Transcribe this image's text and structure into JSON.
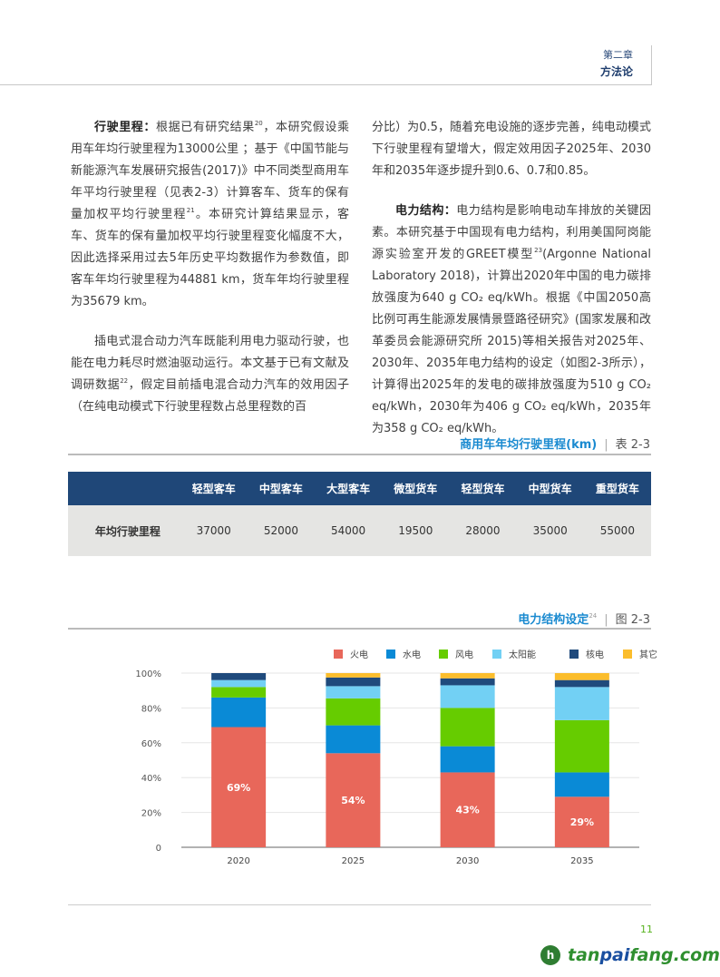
{
  "header": {
    "chapter": "第二章",
    "section": "方法论"
  },
  "left": {
    "p1_head": "行驶里程：",
    "p1_a": "根据已有研究结果",
    "p1_sup1": "20",
    "p1_b": "，本研究假设乘用车年均行驶里程为13000公里 ；基于《中国节能与新能源汽车发展研究报告(2017)》中不同类型商用车年平均行驶里程（见表2-3）计算客车、货车的保有量加权平均行驶里程",
    "p1_sup2": "21",
    "p1_c": "。本研究计算结果显示，客车、货车的保有量加权平均行驶里程变化幅度不大，因此选择采用过去5年历史平均数据作为参数值，即客车年均行驶里程为44881 km，货车年均行驶里程为35679 km。",
    "p2_a": "插电式混合动力汽车既能利用电力驱动行驶，也能在电力耗尽时燃油驱动运行。本文基于已有文献及调研数据",
    "p2_sup": "22",
    "p2_b": "，假定目前插电混合动力汽车的效用因子（在纯电动模式下行驶里程数占总里程数的百"
  },
  "right": {
    "p1": "分比）为0.5，随着充电设施的逐步完善，纯电动模式下行驶里程有望增大，假定效用因子2025年、2030年和2035年逐步提升到0.6、0.7和0.85。",
    "p2_head": "电力结构：",
    "p2_a": "电力结构是影响电动车排放的关键因素。本研究基于中国现有电力结构，利用美国阿岗能源实验室开发的GREET模型",
    "p2_sup": "23",
    "p2_b": "(Argonne National Laboratory 2018)，计算出2020年中国的电力碳排放强度为640 g CO₂ eq/kWh。根据《中国2050高比例可再生能源发展情景暨路径研究》(国家发展和改革委员会能源研究所 2015)等相关报告对2025年、2030年、2035年电力结构的设定（如图2-3所示），计算得出2025年的发电的碳排放强度为510 g CO₂ eq/kWh，2030年为406 g CO₂ eq/kWh，2035年为358 g CO₂ eq/kWh。"
  },
  "table": {
    "caption": "商用车年均行驶里程(km)",
    "label": "表 2-3",
    "columns": [
      "轻型客车",
      "中型客车",
      "大型客车",
      "微型货车",
      "轻型货车",
      "中型货车",
      "重型货车"
    ],
    "row_header": "年均行驶里程",
    "values": [
      "37000",
      "52000",
      "54000",
      "19500",
      "28000",
      "35000",
      "55000"
    ]
  },
  "figure": {
    "caption": "电力结构设定",
    "sup": "24",
    "label": "图 2-3"
  },
  "chart_data": {
    "type": "bar",
    "stacked": true,
    "categories": [
      "2020",
      "2025",
      "2030",
      "2035"
    ],
    "yticks": [
      "0",
      "20%",
      "40%",
      "60%",
      "80%",
      "100%"
    ],
    "ylim": [
      0,
      100
    ],
    "legend": "top-right",
    "grid": true,
    "series": [
      {
        "name": "火电",
        "color": "#e8675a",
        "values": [
          69,
          54,
          43,
          29
        ],
        "labels": [
          "69%",
          "54%",
          "43%",
          "29%"
        ]
      },
      {
        "name": "水电",
        "color": "#0a8ad6",
        "values": [
          17,
          16,
          15,
          14
        ]
      },
      {
        "name": "风电",
        "color": "#66cc00",
        "values": [
          6,
          15.5,
          22,
          30
        ]
      },
      {
        "name": "太阳能",
        "color": "#72d0f4",
        "values": [
          4,
          7,
          13,
          19
        ]
      },
      {
        "name": "核电",
        "color": "#1f4a7c",
        "values": [
          4,
          5,
          4,
          4
        ]
      },
      {
        "name": "其它",
        "color": "#fbbd2c",
        "values": [
          0,
          2.5,
          3,
          4
        ]
      }
    ]
  },
  "footer": {
    "page": "11",
    "logo": "tanpaifang.com"
  }
}
